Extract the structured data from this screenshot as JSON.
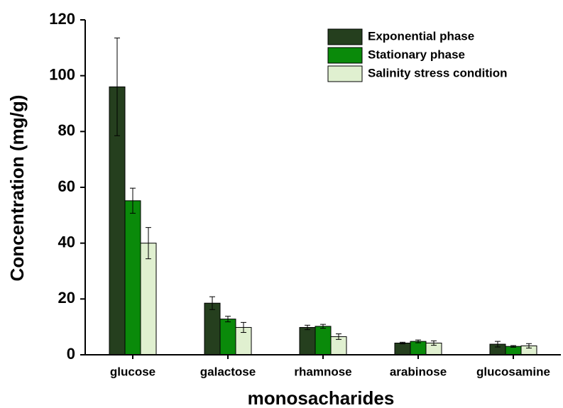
{
  "chart_data": {
    "type": "bar",
    "xlabel": "monosacharides",
    "ylabel": "Concentration (mg/g)",
    "categories": [
      "glucose",
      "galactose",
      "rhamnose",
      "arabinose",
      "glucosamine"
    ],
    "series": [
      {
        "name": "Exponential phase",
        "color": "#253f1e",
        "values": [
          96,
          18.5,
          9.8,
          4.2,
          3.8
        ],
        "errors": [
          17.5,
          2.3,
          0.8,
          0.3,
          1
        ]
      },
      {
        "name": "Stationary phase",
        "color": "#0a8a0a",
        "values": [
          55.2,
          12.8,
          10.2,
          4.8,
          3.0
        ],
        "errors": [
          4.5,
          1,
          0.7,
          0.5,
          0.3
        ]
      },
      {
        "name": "Salinity stress condition",
        "color": "#e0f0d0",
        "values": [
          40,
          9.8,
          6.5,
          4.2,
          3.2
        ],
        "errors": [
          5.6,
          1.8,
          1,
          0.8,
          0.8
        ]
      }
    ],
    "ylim": [
      0,
      120
    ],
    "yticks": [
      0,
      20,
      40,
      60,
      80,
      100,
      120
    ],
    "legend": "upper-right"
  }
}
